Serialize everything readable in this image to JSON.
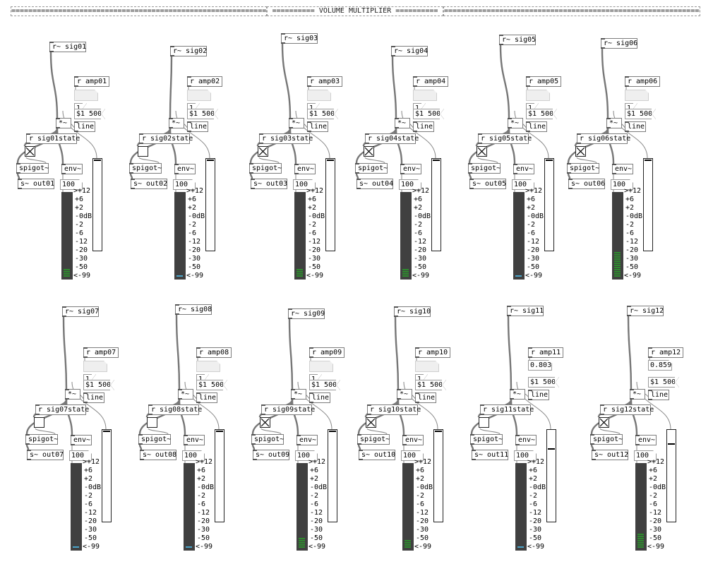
{
  "header": {
    "left_line": "==========================================================================================",
    "title": "========== VOLUME MULTIPLIER ==========",
    "right_line": "=========================================================================================="
  },
  "common": {
    "env_label": "env~",
    "env_arg": "100",
    "mult_label": "*~",
    "line_label": "line",
    "spigot_label": "spigot~",
    "amp_msg": "$1 500",
    "vu_scale": [
      ">+12",
      "+6",
      "+2",
      "-0dB",
      "-2",
      "-6",
      "-12",
      "-20",
      "-30",
      "-50",
      "<-99"
    ]
  },
  "channels": [
    {
      "id": "01",
      "recv": "r~ sig01",
      "amp": "r amp01",
      "amp_value": "",
      "one": "1",
      "state": "r sig01state",
      "send": "s~ out01",
      "toggle_on": true,
      "slider_level": 1.0,
      "vu_lit": 4,
      "led_color": "#2e8b2e"
    },
    {
      "id": "02",
      "recv": "r~ sig02",
      "amp": "r amp02",
      "amp_value": "",
      "one": "1",
      "state": "r sig02state",
      "send": "s~ out02",
      "toggle_on": false,
      "slider_level": 1.0,
      "vu_lit": 1,
      "led_color": "#4aa3c8"
    },
    {
      "id": "03",
      "recv": "r~ sig03",
      "amp": "r amp03",
      "amp_value": "",
      "one": "1",
      "state": "r sig03state",
      "send": "s~ out03",
      "toggle_on": true,
      "slider_level": 1.0,
      "vu_lit": 4,
      "led_color": "#2e8b2e"
    },
    {
      "id": "04",
      "recv": "r~ sig04",
      "amp": "r amp04",
      "amp_value": "",
      "one": "1",
      "state": "r sig04state",
      "send": "s~ out04",
      "toggle_on": true,
      "slider_level": 1.0,
      "vu_lit": 4,
      "led_color": "#2e8b2e"
    },
    {
      "id": "05",
      "recv": "r~ sig05",
      "amp": "r amp05",
      "amp_value": "",
      "one": "1",
      "state": "r sig05state",
      "send": "s~ out05",
      "toggle_on": true,
      "slider_level": 1.0,
      "vu_lit": 1,
      "led_color": "#4aa3c8"
    },
    {
      "id": "06",
      "recv": "r~ sig06",
      "amp": "r amp06",
      "amp_value": "",
      "one": "1",
      "state": "r sig06state",
      "send": "s~ out06",
      "toggle_on": true,
      "slider_level": 1.0,
      "vu_lit": 12,
      "led_color": "#2e8b2e"
    },
    {
      "id": "07",
      "recv": "r~ sig07",
      "amp": "r amp07",
      "amp_value": "",
      "one": "1",
      "state": "r sig07state",
      "send": "s~ out07",
      "toggle_on": false,
      "slider_level": 1.0,
      "vu_lit": 1,
      "led_color": "#4aa3c8"
    },
    {
      "id": "08",
      "recv": "r~ sig08",
      "amp": "r amp08",
      "amp_value": "",
      "one": "1",
      "state": "r sig08state",
      "send": "s~ out08",
      "toggle_on": false,
      "slider_level": 1.0,
      "vu_lit": 1,
      "led_color": "#4aa3c8"
    },
    {
      "id": "09",
      "recv": "r~ sig09",
      "amp": "r amp09",
      "amp_value": "",
      "one": "1",
      "state": "r sig09state",
      "send": "s~ out09",
      "toggle_on": true,
      "slider_level": 1.0,
      "vu_lit": 5,
      "led_color": "#2e8b2e"
    },
    {
      "id": "10",
      "recv": "r~ sig10",
      "amp": "r amp10",
      "amp_value": "",
      "one": "1",
      "state": "r sig10state",
      "send": "s~ out10",
      "toggle_on": true,
      "slider_level": 1.0,
      "vu_lit": 4,
      "led_color": "#2e8b2e"
    },
    {
      "id": "11",
      "recv": "r~ sig11",
      "amp": "r amp11",
      "amp_value": "0.803",
      "one": "",
      "state": "r sig11state",
      "send": "s~ out11",
      "toggle_on": false,
      "slider_level": 0.803,
      "vu_lit": 1,
      "led_color": "#4aa3c8"
    },
    {
      "id": "12",
      "recv": "r~ sig12",
      "amp": "r amp12",
      "amp_value": "0.859",
      "one": "",
      "state": "r sig12state",
      "send": "s~ out12",
      "toggle_on": true,
      "slider_level": 0.859,
      "vu_lit": 7,
      "led_color": "#2e8b2e"
    }
  ]
}
